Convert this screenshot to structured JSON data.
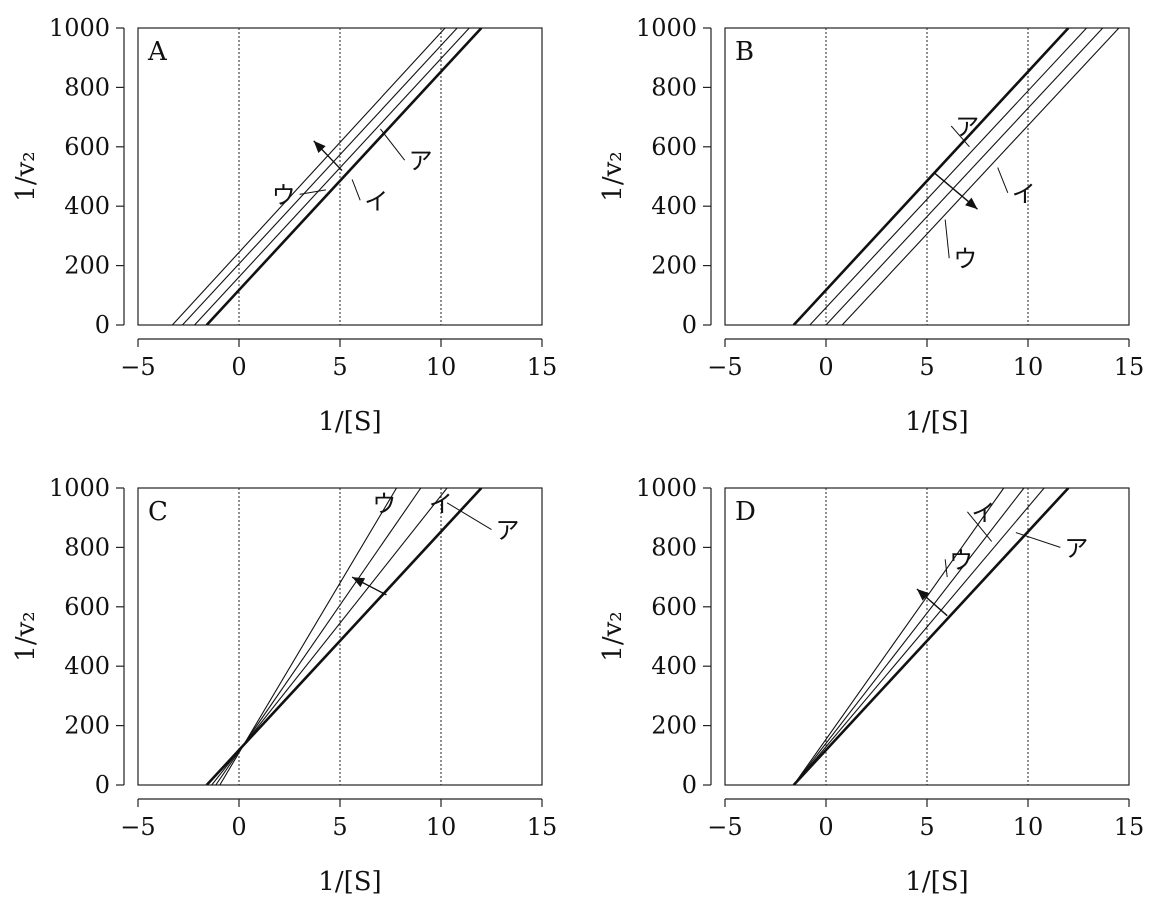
{
  "chart_data": [
    {
      "type": "line",
      "panel_label": "A",
      "xlabel": "1/[S]",
      "ylabel": "1/v₂",
      "xlim": [
        -5,
        15
      ],
      "ylim": [
        0,
        1000
      ],
      "xticks": [
        "−5",
        "0",
        "5",
        "10",
        "15"
      ],
      "yticks": [
        "0",
        "200",
        "400",
        "600",
        "800",
        "1000"
      ],
      "vlines": [
        0,
        5,
        10
      ],
      "grid": false,
      "series": [
        {
          "name": "",
          "x": [
            -1.6,
            12.0
          ],
          "y": [
            0,
            1000
          ],
          "bold": true
        },
        {
          "name": "ア",
          "x": [
            -2.2,
            11.4
          ],
          "y": [
            0,
            1000
          ]
        },
        {
          "name": "イ",
          "x": [
            -2.8,
            10.8
          ],
          "y": [
            0,
            1000
          ]
        },
        {
          "name": "ウ",
          "x": [
            -3.3,
            10.2
          ],
          "y": [
            0,
            1000
          ]
        }
      ],
      "arrow": {
        "from": [
          5.1,
          520
        ],
        "to": [
          3.7,
          620
        ]
      }
    },
    {
      "type": "line",
      "panel_label": "B",
      "xlabel": "1/[S]",
      "ylabel": "1/v₂",
      "xlim": [
        -5,
        15
      ],
      "ylim": [
        0,
        1000
      ],
      "xticks": [
        "−5",
        "0",
        "5",
        "10",
        "15"
      ],
      "yticks": [
        "0",
        "200",
        "400",
        "600",
        "800",
        "1000"
      ],
      "vlines": [
        0,
        5,
        10
      ],
      "grid": false,
      "series": [
        {
          "name": "",
          "x": [
            -1.6,
            12.0
          ],
          "y": [
            0,
            1000
          ],
          "bold": true
        },
        {
          "name": "ア",
          "x": [
            -0.8,
            12.9
          ],
          "y": [
            0,
            1000
          ]
        },
        {
          "name": "イ",
          "x": [
            0.0,
            13.7
          ],
          "y": [
            0,
            1000
          ]
        },
        {
          "name": "ウ",
          "x": [
            0.8,
            14.5
          ],
          "y": [
            0,
            1000
          ]
        }
      ],
      "arrow": {
        "from": [
          5.4,
          510
        ],
        "to": [
          7.5,
          390
        ]
      }
    },
    {
      "type": "line",
      "panel_label": "C",
      "xlabel": "1/[S]",
      "ylabel": "1/v₂",
      "xlim": [
        -5,
        15
      ],
      "ylim": [
        0,
        1000
      ],
      "xticks": [
        "−5",
        "0",
        "5",
        "10",
        "15"
      ],
      "yticks": [
        "0",
        "200",
        "400",
        "600",
        "800",
        "1000"
      ],
      "vlines": [
        0,
        5,
        10
      ],
      "grid": false,
      "series": [
        {
          "name": "",
          "x": [
            -1.6,
            12.0
          ],
          "y": [
            0,
            1000
          ],
          "bold": true
        },
        {
          "name": "ア",
          "x": [
            -1.35,
            10.3
          ],
          "y": [
            0,
            1000
          ]
        },
        {
          "name": "イ",
          "x": [
            -1.15,
            9.0
          ],
          "y": [
            0,
            1000
          ]
        },
        {
          "name": "ウ",
          "x": [
            -0.95,
            7.8
          ],
          "y": [
            0,
            1000
          ]
        }
      ],
      "arrow": {
        "from": [
          7.3,
          640
        ],
        "to": [
          5.6,
          700
        ]
      }
    },
    {
      "type": "line",
      "panel_label": "D",
      "xlabel": "1/[S]",
      "ylabel": "1/v₂",
      "xlim": [
        -5,
        15
      ],
      "ylim": [
        0,
        1000
      ],
      "xticks": [
        "−5",
        "0",
        "5",
        "10",
        "15"
      ],
      "yticks": [
        "0",
        "200",
        "400",
        "600",
        "800",
        "1000"
      ],
      "vlines": [
        0,
        5,
        10
      ],
      "grid": false,
      "series": [
        {
          "name": "",
          "x": [
            -1.6,
            12.0
          ],
          "y": [
            0,
            1000
          ],
          "bold": true
        },
        {
          "name": "ア",
          "x": [
            -1.6,
            10.8
          ],
          "y": [
            0,
            1000
          ]
        },
        {
          "name": "イ",
          "x": [
            -1.6,
            9.8
          ],
          "y": [
            0,
            1000
          ]
        },
        {
          "name": "ウ",
          "x": [
            -1.6,
            8.8
          ],
          "y": [
            0,
            1000
          ]
        }
      ],
      "arrow": {
        "from": [
          6.0,
          570
        ],
        "to": [
          4.5,
          660
        ]
      }
    }
  ]
}
